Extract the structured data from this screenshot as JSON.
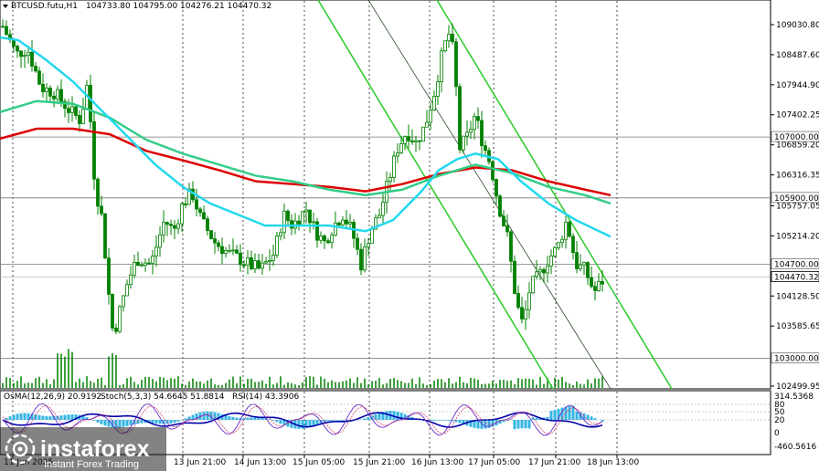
{
  "header": {
    "symbol": "BTCUSD.futu,H1",
    "ohlc": "104733.80 104795.00 104276.21 104470.32"
  },
  "indicators_label": {
    "osma": "OsMA(12,26,9) 20.9192",
    "stoch": "Stoch(5,3,3) 54.6645 51.8814",
    "rsi": "RSI(14) 43.3906"
  },
  "price_axis": {
    "ticks": [
      "109030.80",
      "108487.60",
      "107944.90",
      "107402.25",
      "106859.20",
      "106316.35",
      "105757.05",
      "105214.20",
      "104128.50",
      "103585.65",
      "102499.95"
    ],
    "tick_values": [
      109030.8,
      108487.6,
      107944.9,
      107402.25,
      106859.2,
      106316.35,
      105757.05,
      105214.2,
      104128.5,
      103585.65,
      102499.95
    ],
    "levels": [
      {
        "label": "107000.00",
        "value": 107000
      },
      {
        "label": "105900.00",
        "value": 105900
      },
      {
        "label": "104700.00",
        "value": 104700
      },
      {
        "label": "103000.00",
        "value": 103000
      }
    ],
    "current": {
      "label": "104470.32",
      "value": 104470.32
    }
  },
  "osc_axis": {
    "labels": [
      "314.5368",
      "80",
      "50",
      "20",
      "0",
      "-460.5616"
    ]
  },
  "time_axis": {
    "labels": [
      "11 Jun 2025",
      "13 Jun 21:00",
      "14 Jun 13:00",
      "15 Jun 05:00",
      "15 Jun 21:00",
      "16 Jun 13:00",
      "17 Jun 05:00",
      "17 Jun 21:00",
      "18 Jun 13:00"
    ]
  },
  "watermark": {
    "brand": "instaforex",
    "tagline": "Instant Forex Trading"
  },
  "colors": {
    "candle": "#008000",
    "ema_red": "#dd0000",
    "ema_green": "#33cc88",
    "ema_cyan": "#22d8ee",
    "channel": "#33cc33",
    "histogram": "#33b5e6",
    "rsi": "#0000aa",
    "stoch_main": "#6a2ccc",
    "stoch_signal": "#cc3366"
  }
}
